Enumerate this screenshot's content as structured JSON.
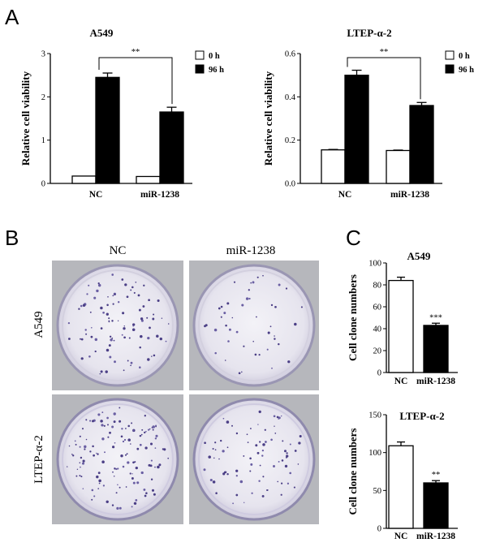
{
  "panels": {
    "a": "A",
    "b": "B",
    "c": "C"
  },
  "chart_data": [
    {
      "type": "bar",
      "panel": "A",
      "title": "A549",
      "ylabel": "Relative cell viability",
      "categories": [
        "NC",
        "miR-1238"
      ],
      "series": [
        {
          "name": "0 h",
          "values": [
            0.17,
            0.16
          ],
          "errors": [
            0.0,
            0.0
          ]
        },
        {
          "name": "96 h",
          "values": [
            2.45,
            1.65
          ],
          "errors": [
            0.1,
            0.11
          ]
        }
      ],
      "ylim": [
        0,
        3
      ],
      "yticks": [
        0,
        1,
        2,
        3
      ],
      "significance": "**",
      "legend": "top-right",
      "colors": {
        "0 h": "#ffffff",
        "96 h": "#000000"
      }
    },
    {
      "type": "bar",
      "panel": "A",
      "title": "LTEP-α-2",
      "ylabel": "Relative cell viability",
      "categories": [
        "NC",
        "miR-1238"
      ],
      "series": [
        {
          "name": "0 h",
          "values": [
            0.155,
            0.152
          ],
          "errors": [
            0.002,
            0.002
          ]
        },
        {
          "name": "96 h",
          "values": [
            0.5,
            0.36
          ],
          "errors": [
            0.023,
            0.014
          ]
        }
      ],
      "ylim": [
        0,
        0.6
      ],
      "yticks": [
        0.0,
        0.2,
        0.4,
        0.6
      ],
      "significance": "**",
      "legend": "top-right",
      "colors": {
        "0 h": "#ffffff",
        "96 h": "#000000"
      }
    },
    {
      "type": "bar",
      "panel": "C",
      "title": "A549",
      "ylabel": "Cell clone numbers",
      "categories": [
        "NC",
        "miR-1238"
      ],
      "values": [
        84,
        43
      ],
      "errors": [
        3,
        2
      ],
      "ylim": [
        0,
        100
      ],
      "yticks": [
        0,
        20,
        40,
        60,
        80,
        100
      ],
      "significance": "***",
      "colors": [
        "#ffffff",
        "#000000"
      ]
    },
    {
      "type": "bar",
      "panel": "C",
      "title": "LTEP-α-2",
      "ylabel": "Cell clone numbers",
      "categories": [
        "NC",
        "miR-1238"
      ],
      "values": [
        109,
        60
      ],
      "errors": [
        5,
        3
      ],
      "ylim": [
        0,
        150
      ],
      "yticks": [
        0,
        50,
        100,
        150
      ],
      "significance": "**",
      "colors": [
        "#ffffff",
        "#000000"
      ]
    }
  ],
  "plates": {
    "columns": [
      "NC",
      "miR-1238"
    ],
    "rows": [
      "A549",
      "LTEP-α-2"
    ]
  }
}
